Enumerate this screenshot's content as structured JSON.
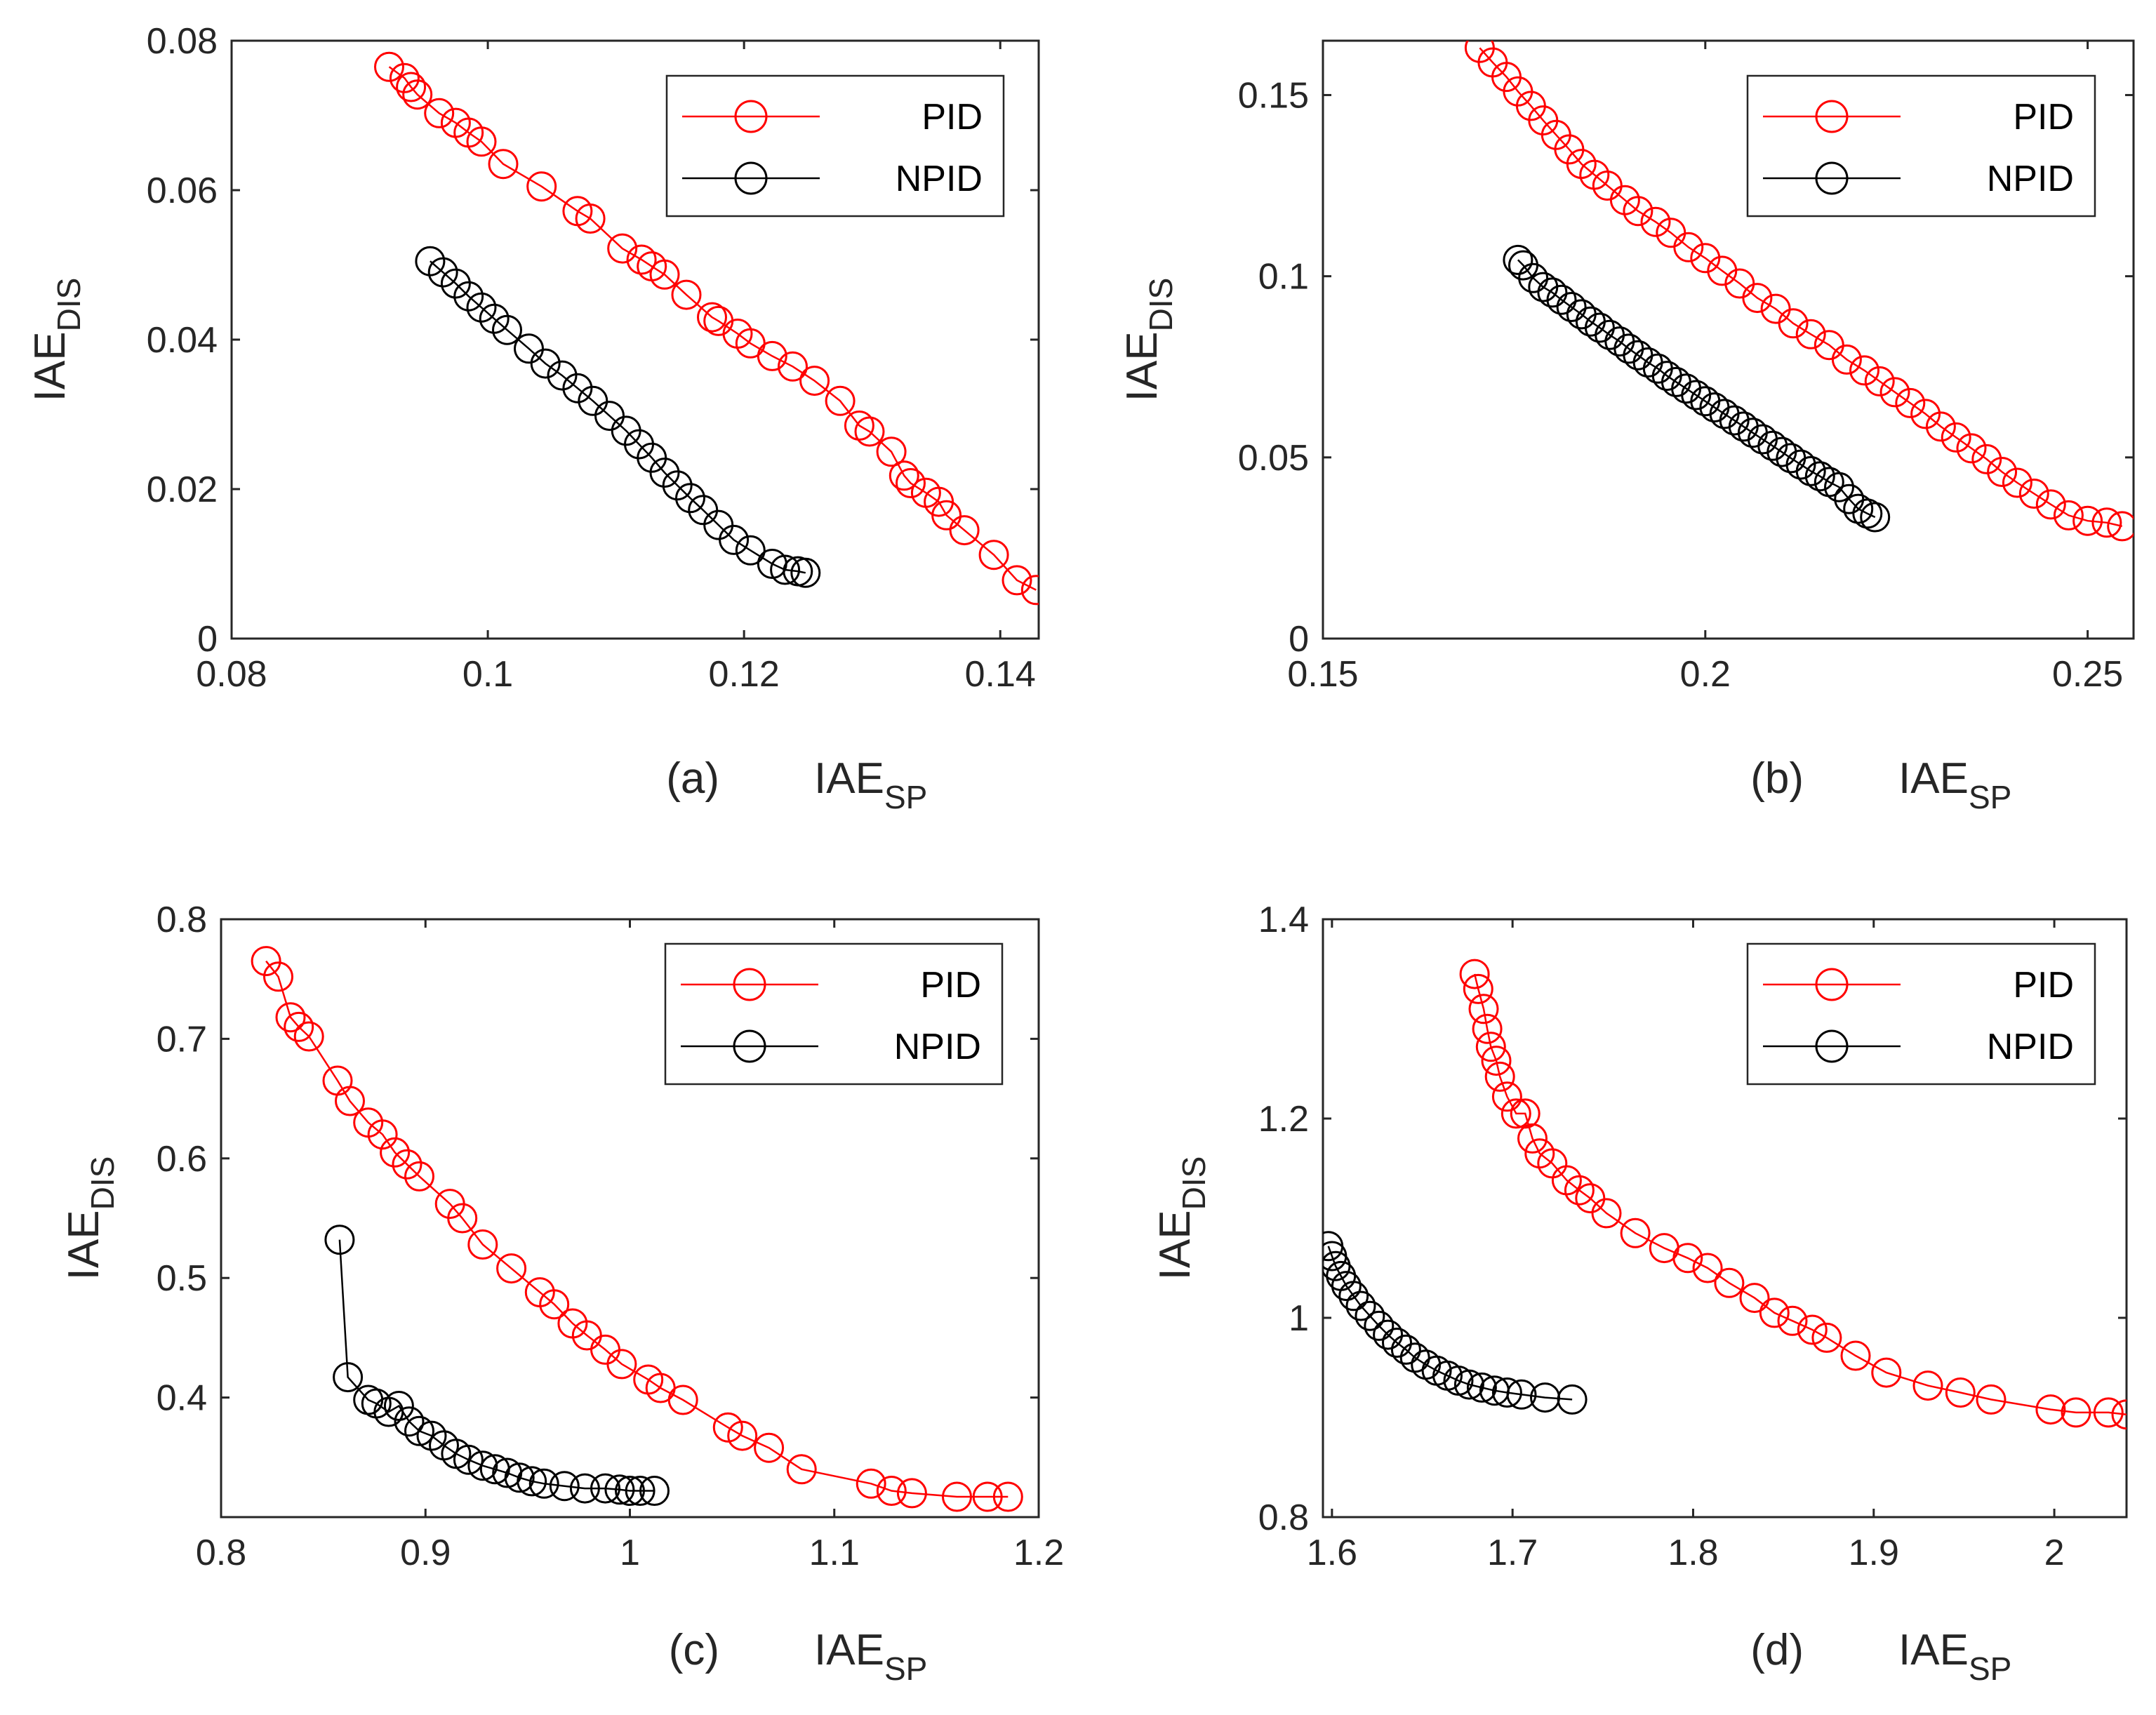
{
  "colors": {
    "pid": "#ff0000",
    "npid": "#000000",
    "axis": "#262626"
  },
  "chart_data": [
    {
      "type": "line",
      "panel_label": "(a)",
      "xlabel_main": "IAE",
      "xlabel_sub": "SP",
      "ylabel_main": "IAE",
      "ylabel_sub": "DIS",
      "xlim": [
        0.08,
        0.143
      ],
      "ylim": [
        0,
        0.08
      ],
      "xticks": [
        0.08,
        0.1,
        0.12,
        0.14
      ],
      "xtick_labels": [
        "0.08",
        "0.1",
        "0.12",
        "0.14"
      ],
      "yticks": [
        0,
        0.02,
        0.04,
        0.06,
        0.08
      ],
      "ytick_labels": [
        "0",
        "0.02",
        "0.04",
        "0.06",
        "0.08"
      ],
      "legend": [
        "PID",
        "NPID"
      ],
      "series": [
        {
          "name": "PID",
          "color": "#ff0000",
          "x": [
            0.0923,
            0.0935,
            0.094,
            0.0945,
            0.0962,
            0.0975,
            0.0985,
            0.0995,
            0.1012,
            0.1042,
            0.107,
            0.108,
            0.1105,
            0.112,
            0.1128,
            0.1138,
            0.1155,
            0.1175,
            0.118,
            0.1195,
            0.1205,
            0.1222,
            0.1238,
            0.1255,
            0.1275,
            0.129,
            0.1298,
            0.1315,
            0.1325,
            0.133,
            0.1342,
            0.1352,
            0.1358,
            0.1372,
            0.1395,
            0.1413,
            0.1428
          ],
          "y": [
            0.0765,
            0.075,
            0.0738,
            0.0728,
            0.0703,
            0.069,
            0.0677,
            0.0665,
            0.0635,
            0.0605,
            0.0572,
            0.0562,
            0.0522,
            0.0507,
            0.0498,
            0.0487,
            0.046,
            0.043,
            0.0425,
            0.0408,
            0.0395,
            0.0378,
            0.0364,
            0.0345,
            0.0318,
            0.0285,
            0.0277,
            0.025,
            0.0218,
            0.0208,
            0.0195,
            0.0183,
            0.0165,
            0.0145,
            0.0112,
            0.0078,
            0.0065
          ]
        },
        {
          "name": "NPID",
          "color": "#000000",
          "x": [
            0.0955,
            0.0965,
            0.0975,
            0.0985,
            0.0995,
            0.1005,
            0.1015,
            0.1032,
            0.1045,
            0.1058,
            0.107,
            0.1082,
            0.1095,
            0.1108,
            0.1118,
            0.1128,
            0.1138,
            0.1148,
            0.1158,
            0.1168,
            0.118,
            0.1192,
            0.1205,
            0.1222,
            0.1232,
            0.1242,
            0.1248
          ],
          "y": [
            0.0505,
            0.049,
            0.0475,
            0.0458,
            0.0443,
            0.0428,
            0.0413,
            0.0388,
            0.0368,
            0.0352,
            0.0335,
            0.0318,
            0.0298,
            0.0278,
            0.026,
            0.0242,
            0.0222,
            0.0205,
            0.0188,
            0.0172,
            0.0152,
            0.0132,
            0.0118,
            0.01,
            0.0092,
            0.009,
            0.0088
          ]
        }
      ]
    },
    {
      "type": "line",
      "panel_label": "(b)",
      "xlabel_main": "IAE",
      "xlabel_sub": "SP",
      "ylabel_main": "IAE",
      "ylabel_sub": "DIS",
      "xlim": [
        0.15,
        0.256
      ],
      "ylim": [
        0,
        0.165
      ],
      "xticks": [
        0.15,
        0.2,
        0.25
      ],
      "xtick_labels": [
        "0.15",
        "0.2",
        "0.25"
      ],
      "yticks": [
        0,
        0.05,
        0.1,
        0.15
      ],
      "ytick_labels": [
        "0",
        "0.05",
        "0.1",
        "0.15"
      ],
      "legend": [
        "PID",
        "NPID"
      ],
      "series": [
        {
          "name": "PID",
          "color": "#ff0000",
          "x": [
            0.1705,
            0.1722,
            0.174,
            0.1755,
            0.1772,
            0.1788,
            0.1805,
            0.1822,
            0.1838,
            0.1855,
            0.1872,
            0.1895,
            0.1912,
            0.1935,
            0.1955,
            0.1978,
            0.2,
            0.2022,
            0.2045,
            0.2068,
            0.2092,
            0.2115,
            0.2138,
            0.2162,
            0.2185,
            0.2208,
            0.2228,
            0.2248,
            0.2268,
            0.2288,
            0.2308,
            0.2328,
            0.2348,
            0.2368,
            0.2388,
            0.2408,
            0.243,
            0.2452,
            0.2475,
            0.25,
            0.2525,
            0.2545
          ],
          "y": [
            0.163,
            0.159,
            0.155,
            0.151,
            0.147,
            0.143,
            0.139,
            0.135,
            0.131,
            0.128,
            0.125,
            0.121,
            0.118,
            0.115,
            0.112,
            0.108,
            0.105,
            0.1015,
            0.098,
            0.094,
            0.091,
            0.087,
            0.084,
            0.081,
            0.077,
            0.074,
            0.071,
            0.068,
            0.065,
            0.062,
            0.0585,
            0.0555,
            0.0525,
            0.0495,
            0.046,
            0.043,
            0.04,
            0.037,
            0.034,
            0.0325,
            0.032,
            0.031
          ]
        },
        {
          "name": "NPID",
          "color": "#000000",
          "x": [
            0.1755,
            0.1762,
            0.1775,
            0.1788,
            0.18,
            0.1812,
            0.1825,
            0.1838,
            0.185,
            0.1862,
            0.1875,
            0.1888,
            0.19,
            0.1912,
            0.1925,
            0.1938,
            0.195,
            0.1962,
            0.1975,
            0.1988,
            0.2,
            0.2012,
            0.2025,
            0.2038,
            0.205,
            0.2062,
            0.2075,
            0.2088,
            0.21,
            0.2112,
            0.2125,
            0.2138,
            0.215,
            0.2162,
            0.2175,
            0.2188,
            0.22,
            0.2212,
            0.2222
          ],
          "y": [
            0.1045,
            0.103,
            0.0995,
            0.097,
            0.0955,
            0.0935,
            0.0915,
            0.0895,
            0.0875,
            0.0858,
            0.0838,
            0.082,
            0.08,
            0.0782,
            0.0762,
            0.0745,
            0.0725,
            0.0708,
            0.069,
            0.0672,
            0.0655,
            0.0638,
            0.062,
            0.0602,
            0.0585,
            0.0568,
            0.055,
            0.0532,
            0.0515,
            0.0498,
            0.048,
            0.0462,
            0.0448,
            0.0432,
            0.0418,
            0.0385,
            0.0358,
            0.0345,
            0.0335
          ]
        }
      ]
    },
    {
      "type": "line",
      "panel_label": "(c)",
      "xlabel_main": "IAE",
      "xlabel_sub": "SP",
      "ylabel_main": "IAE",
      "ylabel_sub": "DIS",
      "xlim": [
        0.8,
        1.2
      ],
      "ylim": [
        0.3,
        0.8
      ],
      "xticks": [
        0.8,
        0.9,
        1,
        1.1,
        1.2
      ],
      "xtick_labels": [
        "0.8",
        "0.9",
        "1",
        "1.1",
        "1.2"
      ],
      "yticks": [
        0.4,
        0.5,
        0.6,
        0.7,
        0.8
      ],
      "ytick_labels": [
        "0.4",
        "0.5",
        "0.6",
        "0.7",
        "0.8"
      ],
      "legend": [
        "PID",
        "NPID"
      ],
      "series": [
        {
          "name": "PID",
          "color": "#ff0000",
          "x": [
            0.822,
            0.828,
            0.834,
            0.838,
            0.843,
            0.857,
            0.863,
            0.872,
            0.879,
            0.885,
            0.891,
            0.897,
            0.912,
            0.918,
            0.928,
            0.942,
            0.956,
            0.963,
            0.972,
            0.979,
            0.988,
            0.996,
            1.009,
            1.015,
            1.026,
            1.048,
            1.055,
            1.068,
            1.084,
            1.118,
            1.128,
            1.138,
            1.16,
            1.175,
            1.185
          ],
          "y": [
            0.765,
            0.752,
            0.718,
            0.71,
            0.702,
            0.665,
            0.648,
            0.63,
            0.62,
            0.605,
            0.595,
            0.585,
            0.562,
            0.55,
            0.528,
            0.508,
            0.488,
            0.478,
            0.462,
            0.452,
            0.44,
            0.428,
            0.415,
            0.408,
            0.398,
            0.375,
            0.368,
            0.358,
            0.34,
            0.328,
            0.322,
            0.32,
            0.317,
            0.317,
            0.317
          ]
        },
        {
          "name": "NPID",
          "color": "#000000",
          "x": [
            0.858,
            0.862,
            0.872,
            0.876,
            0.882,
            0.887,
            0.892,
            0.897,
            0.903,
            0.909,
            0.915,
            0.921,
            0.928,
            0.934,
            0.94,
            0.946,
            0.952,
            0.958,
            0.968,
            0.978,
            0.988,
            0.995,
            1.0,
            1.005,
            1.012
          ],
          "y": [
            0.532,
            0.417,
            0.398,
            0.395,
            0.388,
            0.393,
            0.38,
            0.372,
            0.368,
            0.36,
            0.353,
            0.348,
            0.343,
            0.34,
            0.337,
            0.333,
            0.33,
            0.328,
            0.326,
            0.324,
            0.324,
            0.323,
            0.322,
            0.322,
            0.322
          ]
        }
      ]
    },
    {
      "type": "line",
      "panel_label": "(d)",
      "xlabel_main": "IAE",
      "xlabel_sub": "SP",
      "ylabel_main": "IAE",
      "ylabel_sub": "DIS",
      "xlim": [
        1.595,
        2.04
      ],
      "ylim": [
        0.8,
        1.4
      ],
      "xticks": [
        1.6,
        1.7,
        1.8,
        1.9,
        2
      ],
      "xtick_labels": [
        "1.6",
        "1.7",
        "1.8",
        "1.9",
        "2"
      ],
      "yticks": [
        0.8,
        1,
        1.2,
        1.4
      ],
      "ytick_labels": [
        "0.8",
        "1",
        "1.2",
        "1.4"
      ],
      "legend": [
        "PID",
        "NPID"
      ],
      "series": [
        {
          "name": "PID",
          "color": "#ff0000",
          "x": [
            1.679,
            1.681,
            1.684,
            1.686,
            1.688,
            1.691,
            1.693,
            1.697,
            1.702,
            1.707,
            1.711,
            1.715,
            1.722,
            1.73,
            1.737,
            1.743,
            1.752,
            1.768,
            1.784,
            1.797,
            1.808,
            1.82,
            1.834,
            1.845,
            1.855,
            1.866,
            1.874,
            1.89,
            1.907,
            1.93,
            1.948,
            1.965,
            1.998,
            2.012,
            2.03,
            2.04
          ],
          "y": [
            1.345,
            1.33,
            1.31,
            1.29,
            1.272,
            1.258,
            1.242,
            1.222,
            1.205,
            1.205,
            1.18,
            1.165,
            1.155,
            1.138,
            1.128,
            1.12,
            1.105,
            1.085,
            1.07,
            1.06,
            1.05,
            1.035,
            1.02,
            1.005,
            0.997,
            0.988,
            0.98,
            0.962,
            0.945,
            0.932,
            0.925,
            0.918,
            0.908,
            0.905,
            0.905,
            0.903
          ]
        },
        {
          "name": "NPID",
          "color": "#000000",
          "x": [
            1.598,
            1.6,
            1.602,
            1.605,
            1.608,
            1.612,
            1.616,
            1.621,
            1.626,
            1.631,
            1.636,
            1.641,
            1.646,
            1.652,
            1.658,
            1.664,
            1.67,
            1.676,
            1.683,
            1.69,
            1.697,
            1.705,
            1.718,
            1.733
          ],
          "y": [
            1.072,
            1.062,
            1.052,
            1.042,
            1.032,
            1.022,
            1.012,
            1.002,
            0.992,
            0.983,
            0.975,
            0.968,
            0.96,
            0.953,
            0.947,
            0.942,
            0.937,
            0.933,
            0.93,
            0.927,
            0.925,
            0.923,
            0.92,
            0.918
          ]
        }
      ]
    }
  ]
}
